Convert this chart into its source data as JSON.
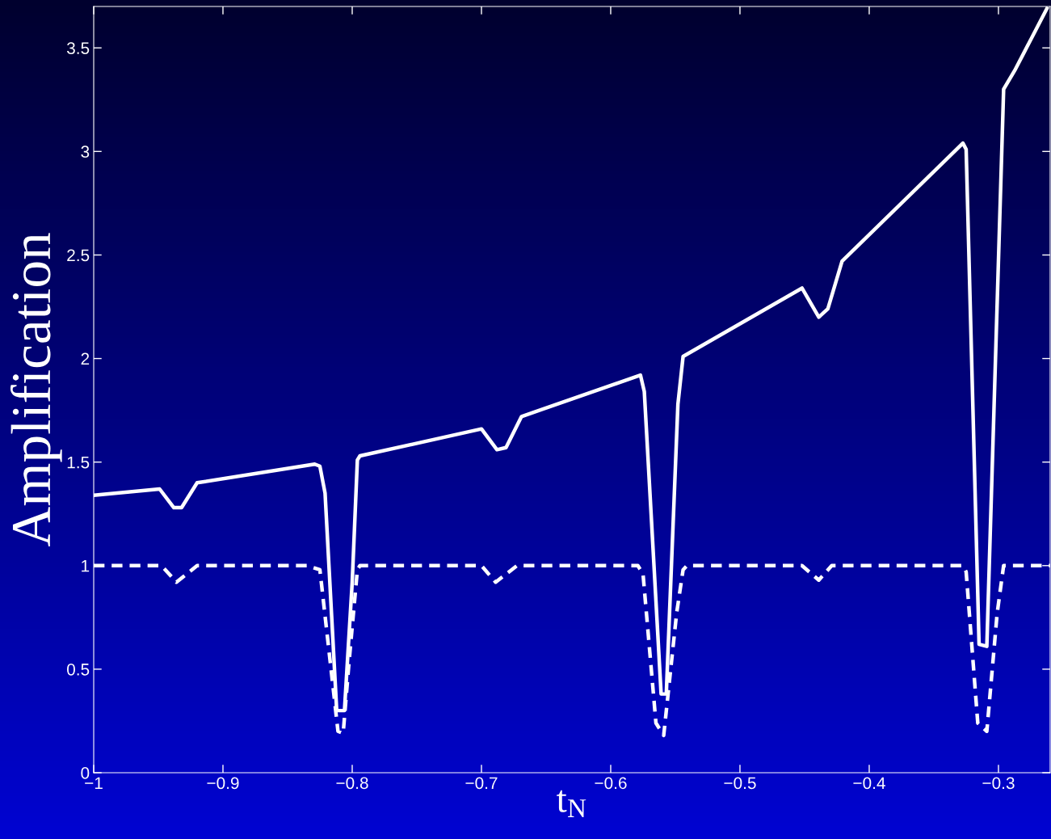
{
  "chart_data": {
    "type": "line",
    "xlabel": "t$_{N}$",
    "ylabel": "Amplification",
    "xlim": [
      -1,
      -0.26
    ],
    "ylim": [
      0,
      3.7
    ],
    "xticks": [
      {
        "value": -1,
        "label": "−1"
      },
      {
        "value": -0.9,
        "label": "−0.9"
      },
      {
        "value": -0.8,
        "label": "−0.8"
      },
      {
        "value": -0.7,
        "label": "−0.7"
      },
      {
        "value": -0.6,
        "label": "−0.6"
      },
      {
        "value": -0.5,
        "label": "−0.5"
      },
      {
        "value": -0.4,
        "label": "−0.4"
      },
      {
        "value": -0.3,
        "label": "−0.3"
      }
    ],
    "yticks": [
      0,
      0.5,
      1,
      1.5,
      2,
      2.5,
      3,
      3.5
    ],
    "grid": false,
    "series": [
      {
        "color": "#ffffff",
        "line_style": "solid",
        "x": [
          -1,
          -0.949,
          -0.938,
          -0.932,
          -0.92,
          -0.829,
          -0.825,
          -0.821,
          -0.812,
          -0.806,
          -0.8,
          -0.796,
          -0.794,
          -0.7,
          -0.688,
          -0.681,
          -0.669,
          -0.577,
          -0.574,
          -0.561,
          -0.557,
          -0.548,
          -0.544,
          -0.452,
          -0.439,
          -0.432,
          -0.421,
          -0.3275,
          -0.325,
          -0.315,
          -0.309,
          -0.296,
          -0.2875,
          -0.2625
        ],
        "values": [
          1.34,
          1.37,
          1.28,
          1.28,
          1.4,
          1.49,
          1.48,
          1.35,
          0.3,
          0.3,
          0.92,
          1.51,
          1.53,
          1.66,
          1.56,
          1.57,
          1.72,
          1.92,
          1.84,
          0.38,
          0.38,
          1.78,
          2.01,
          2.34,
          2.2,
          2.24,
          2.47,
          3.04,
          3.01,
          0.62,
          0.61,
          3.3,
          3.39,
          3.69
        ]
      },
      {
        "color": "#ffffff",
        "line_style": "dashed",
        "x": [
          -1,
          -0.9475,
          -0.936,
          -0.92,
          -0.835,
          -0.825,
          -0.811,
          -0.807,
          -0.8025,
          -0.796,
          -0.794,
          -0.7,
          -0.689,
          -0.6725,
          -0.579,
          -0.575,
          -0.565,
          -0.559,
          -0.549,
          -0.544,
          -0.541,
          -0.452,
          -0.439,
          -0.429,
          -0.3275,
          -0.325,
          -0.316,
          -0.309,
          -0.301,
          -0.296,
          -0.26
        ],
        "values": [
          1,
          1,
          0.92,
          1,
          1,
          0.98,
          0.2,
          0.19,
          0.53,
          0.98,
          1,
          1,
          0.92,
          1,
          1,
          0.96,
          0.24,
          0.18,
          0.77,
          0.98,
          1,
          1,
          0.93,
          1,
          1,
          0.97,
          0.24,
          0.2,
          0.77,
          1,
          1
        ]
      }
    ]
  }
}
